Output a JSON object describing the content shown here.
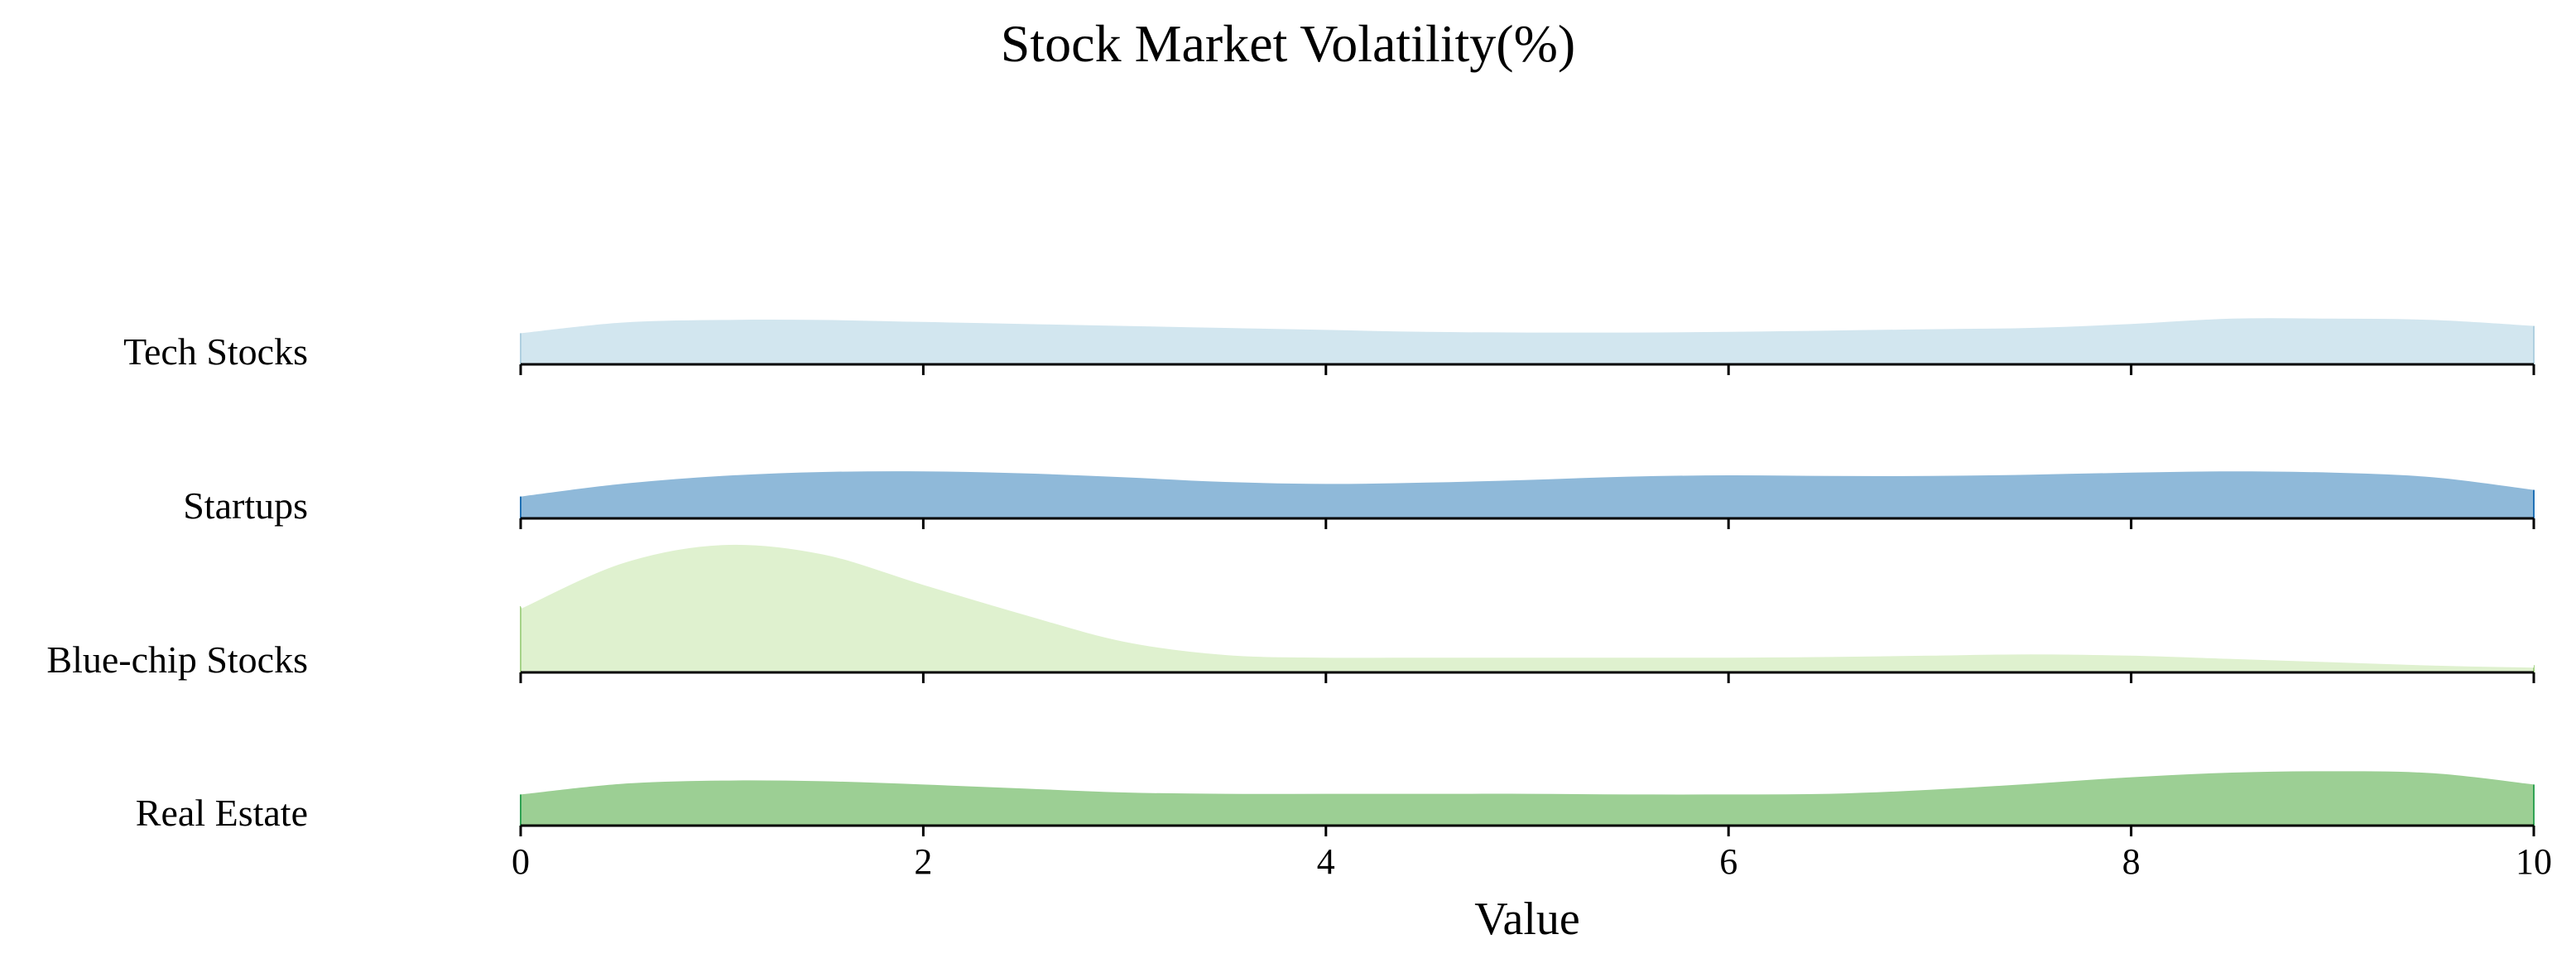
{
  "chart_data": {
    "type": "area",
    "subtype": "ridgeline",
    "title": "Stock Market Volatility(%)",
    "xlabel": "Value",
    "ylabel": "",
    "xlim": [
      0,
      10
    ],
    "x_ticks": [
      0,
      2,
      4,
      6,
      8,
      10
    ],
    "grid": false,
    "legend": "none",
    "x": [
      0,
      0.5,
      1,
      1.5,
      2,
      2.5,
      3,
      3.5,
      4,
      4.5,
      5,
      5.5,
      6,
      6.5,
      7,
      7.5,
      8,
      8.5,
      9,
      9.5,
      10
    ],
    "series": [
      {
        "name": "Tech Stocks",
        "color": "#d2e6ef",
        "edge": "#b0d0e0",
        "outline": false,
        "values": [
          0.47,
          0.63,
          0.67,
          0.67,
          0.64,
          0.61,
          0.58,
          0.55,
          0.52,
          0.49,
          0.48,
          0.48,
          0.49,
          0.51,
          0.53,
          0.55,
          0.61,
          0.69,
          0.69,
          0.67,
          0.58
        ]
      },
      {
        "name": "Startups",
        "color": "#8fb9d9",
        "edge": "#2171b5",
        "outline": false,
        "values": [
          0.33,
          0.52,
          0.64,
          0.7,
          0.71,
          0.68,
          0.62,
          0.55,
          0.52,
          0.54,
          0.58,
          0.63,
          0.65,
          0.64,
          0.64,
          0.66,
          0.69,
          0.71,
          0.69,
          0.62,
          0.43
        ]
      },
      {
        "name": "Blue-chip Stocks",
        "color": "#d8eec4",
        "edge": "#a6d389",
        "outline": true,
        "values": [
          1.0,
          1.68,
          1.96,
          1.82,
          1.36,
          0.91,
          0.5,
          0.3,
          0.26,
          0.26,
          0.26,
          0.26,
          0.26,
          0.27,
          0.29,
          0.31,
          0.29,
          0.24,
          0.19,
          0.14,
          0.11
        ]
      },
      {
        "name": "Real Estate",
        "color": "#9ccf94",
        "edge": "#31a354",
        "outline": false,
        "values": [
          0.47,
          0.63,
          0.68,
          0.67,
          0.62,
          0.56,
          0.5,
          0.48,
          0.48,
          0.48,
          0.48,
          0.47,
          0.47,
          0.48,
          0.54,
          0.63,
          0.73,
          0.8,
          0.82,
          0.79,
          0.62
        ]
      }
    ]
  }
}
